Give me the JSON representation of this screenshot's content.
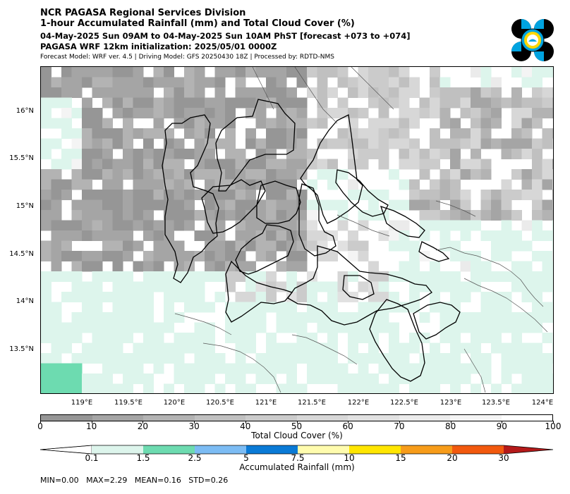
{
  "header": {
    "title1": "NCR PAGASA Regional Services Division",
    "title2": "1-hour Accumulated Rainfall (mm) and Total Cloud Cover (%)",
    "title3": "04-May-2025 Sun 09AM to 04-May-2025 Sun 10AM PhST [forecast +073 to +074]",
    "title4": "PAGASA WRF 12km initialization: 2025/05/01 0000Z",
    "title5": "Forecast Model: WRF ver. 4.5 | Driving Model: GFS 20250430 18Z | Processed by: RDTD-NMS"
  },
  "logo": {
    "name": "PAGASA seal",
    "colors": [
      "#00a3e0",
      "#000000",
      "#ffd700",
      "#ffffff"
    ]
  },
  "map": {
    "lat_labels": [
      "16°N",
      "15.5°N",
      "15°N",
      "14.5°N",
      "14°N",
      "13.5°N"
    ],
    "lon_labels": [
      "119°E",
      "119.5°E",
      "120°E",
      "120.5°E",
      "121°E",
      "121.5°E",
      "122°E",
      "122.5°E",
      "123°E",
      "123.5°E",
      "124°E"
    ],
    "lon_values": [
      119,
      119.5,
      120,
      120.5,
      121,
      121.5,
      122,
      122.5,
      123,
      123.5,
      124
    ],
    "lat_values": [
      16,
      15.5,
      15,
      14.5,
      14,
      13.5
    ]
  },
  "cloud_colorbar": {
    "label": "Total Cloud Cover (%)",
    "ticks": [
      "0",
      "10",
      "20",
      "30",
      "40",
      "50",
      "60",
      "70",
      "80",
      "90",
      "100"
    ],
    "colors": [
      "#969696",
      "#a5a5a5",
      "#b3b3b3",
      "#c0c0c0",
      "#cbcbcb",
      "#d7d7d7",
      "#e1e1e1",
      "#ebebeb",
      "#f4f4f4",
      "#ffffff"
    ]
  },
  "rain_colorbar": {
    "label": "Accumulated Rainfall (mm)",
    "ticks": [
      "0.1",
      "1.5",
      "2.5",
      "5",
      "7.5",
      "10",
      "15",
      "20",
      "30"
    ],
    "colors": [
      "#ddf5ec",
      "#6ddbb0",
      "#7cbcf4",
      "#0a7ad6",
      "#fffcae",
      "#ffe600",
      "#f79c1a",
      "#f2590e",
      "#b51a1a"
    ]
  },
  "stats": "MIN=0.00   MAX=2.29   MEAN=0.16   STD=0.26"
}
